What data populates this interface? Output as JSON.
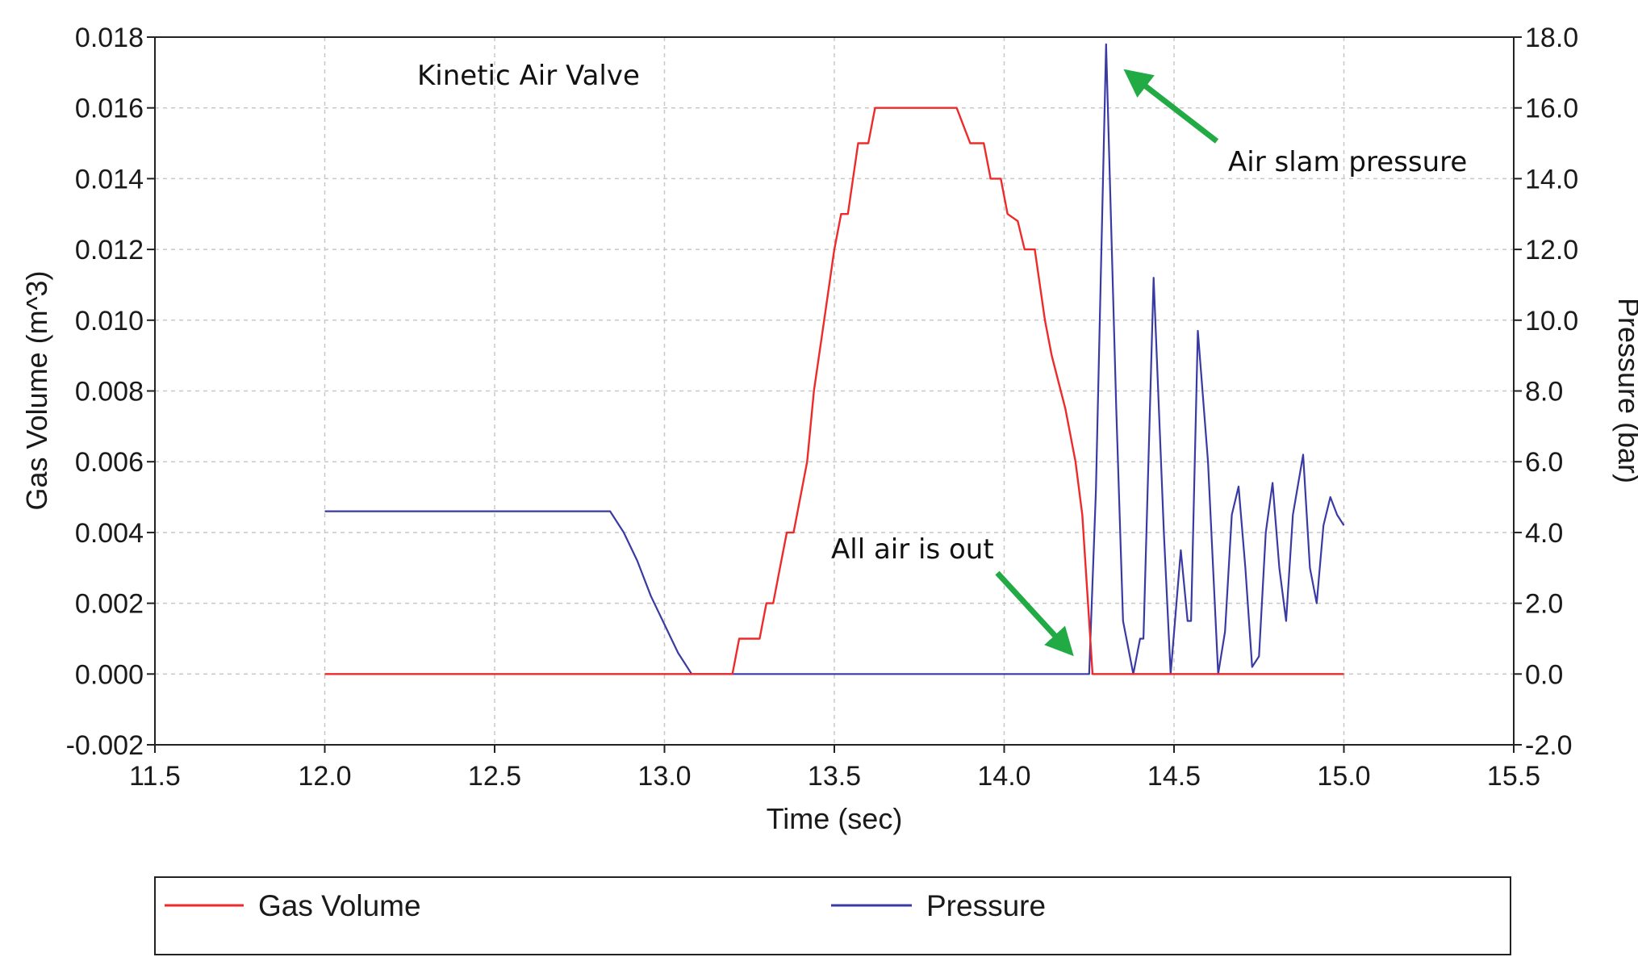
{
  "chart_data": {
    "type": "line",
    "title": "",
    "xlabel": "Time (sec)",
    "ylabel": "Gas Volume (m^3)",
    "y2label": "Pressure (bar)",
    "xlim": [
      11.5,
      15.5
    ],
    "ylim": [
      -0.002,
      0.018
    ],
    "y2lim": [
      -2.0,
      18.0
    ],
    "grid": true,
    "x_ticks": [
      "11.5",
      "12.0",
      "12.5",
      "13.0",
      "13.5",
      "14.0",
      "14.5",
      "15.0",
      "15.5"
    ],
    "y_ticks": [
      "-0.002",
      "0.000",
      "0.002",
      "0.004",
      "0.006",
      "0.008",
      "0.010",
      "0.012",
      "0.014",
      "0.016",
      "0.018"
    ],
    "y2_ticks": [
      "-2.0",
      "0.0",
      "2.0",
      "4.0",
      "6.0",
      "8.0",
      "10.0",
      "12.0",
      "14.0",
      "16.0",
      "18.0"
    ],
    "legend_position": "bottom",
    "series": [
      {
        "name": "Gas Volume",
        "axis": "left",
        "color": "#ee2a2a",
        "x": [
          12.0,
          13.2,
          13.22,
          13.24,
          13.28,
          13.3,
          13.32,
          13.34,
          13.36,
          13.38,
          13.42,
          13.44,
          13.47,
          13.5,
          13.52,
          13.54,
          13.57,
          13.6,
          13.62,
          13.64,
          13.86,
          13.88,
          13.9,
          13.94,
          13.96,
          13.99,
          14.01,
          14.04,
          14.06,
          14.09,
          14.12,
          14.14,
          14.18,
          14.21,
          14.23,
          14.25,
          14.26,
          14.28,
          15.0
        ],
        "y": [
          0.0,
          0.0,
          0.001,
          0.001,
          0.001,
          0.002,
          0.002,
          0.003,
          0.004,
          0.004,
          0.006,
          0.008,
          0.01,
          0.012,
          0.013,
          0.013,
          0.015,
          0.015,
          0.016,
          0.016,
          0.016,
          0.0155,
          0.015,
          0.015,
          0.014,
          0.014,
          0.013,
          0.0128,
          0.012,
          0.012,
          0.01,
          0.009,
          0.0075,
          0.006,
          0.0045,
          0.0015,
          0.0,
          0.0,
          0.0
        ]
      },
      {
        "name": "Pressure",
        "axis": "right",
        "color": "#3a3aa4",
        "x": [
          12.0,
          12.84,
          12.88,
          12.92,
          12.96,
          13.0,
          13.04,
          13.08,
          13.11,
          13.2,
          14.25,
          14.27,
          14.3,
          14.33,
          14.35,
          14.38,
          14.4,
          14.41,
          14.44,
          14.47,
          14.49,
          14.52,
          14.54,
          14.55,
          14.57,
          14.6,
          14.63,
          14.65,
          14.67,
          14.69,
          14.71,
          14.73,
          14.75,
          14.77,
          14.79,
          14.81,
          14.83,
          14.85,
          14.88,
          14.9,
          14.92,
          14.94,
          14.96,
          14.98,
          15.0
        ],
        "y": [
          4.6,
          4.6,
          4.0,
          3.2,
          2.2,
          1.4,
          0.6,
          0.0,
          0.0,
          0.0,
          0.0,
          5.2,
          17.8,
          7.5,
          1.5,
          0.0,
          1.0,
          1.0,
          11.2,
          4.0,
          0.0,
          3.5,
          1.5,
          1.5,
          9.7,
          6.0,
          0.0,
          1.2,
          4.5,
          5.3,
          3.0,
          0.2,
          0.5,
          4.0,
          5.4,
          3.0,
          1.5,
          4.5,
          6.2,
          3.0,
          2.0,
          4.2,
          5.0,
          4.5,
          4.2
        ]
      }
    ],
    "annotations": [
      {
        "text": "Kinetic Air Valve"
      },
      {
        "text": "Air slam pressure",
        "color": "#22aa44"
      },
      {
        "text": "All air is out",
        "color": "#22aa44"
      }
    ]
  }
}
